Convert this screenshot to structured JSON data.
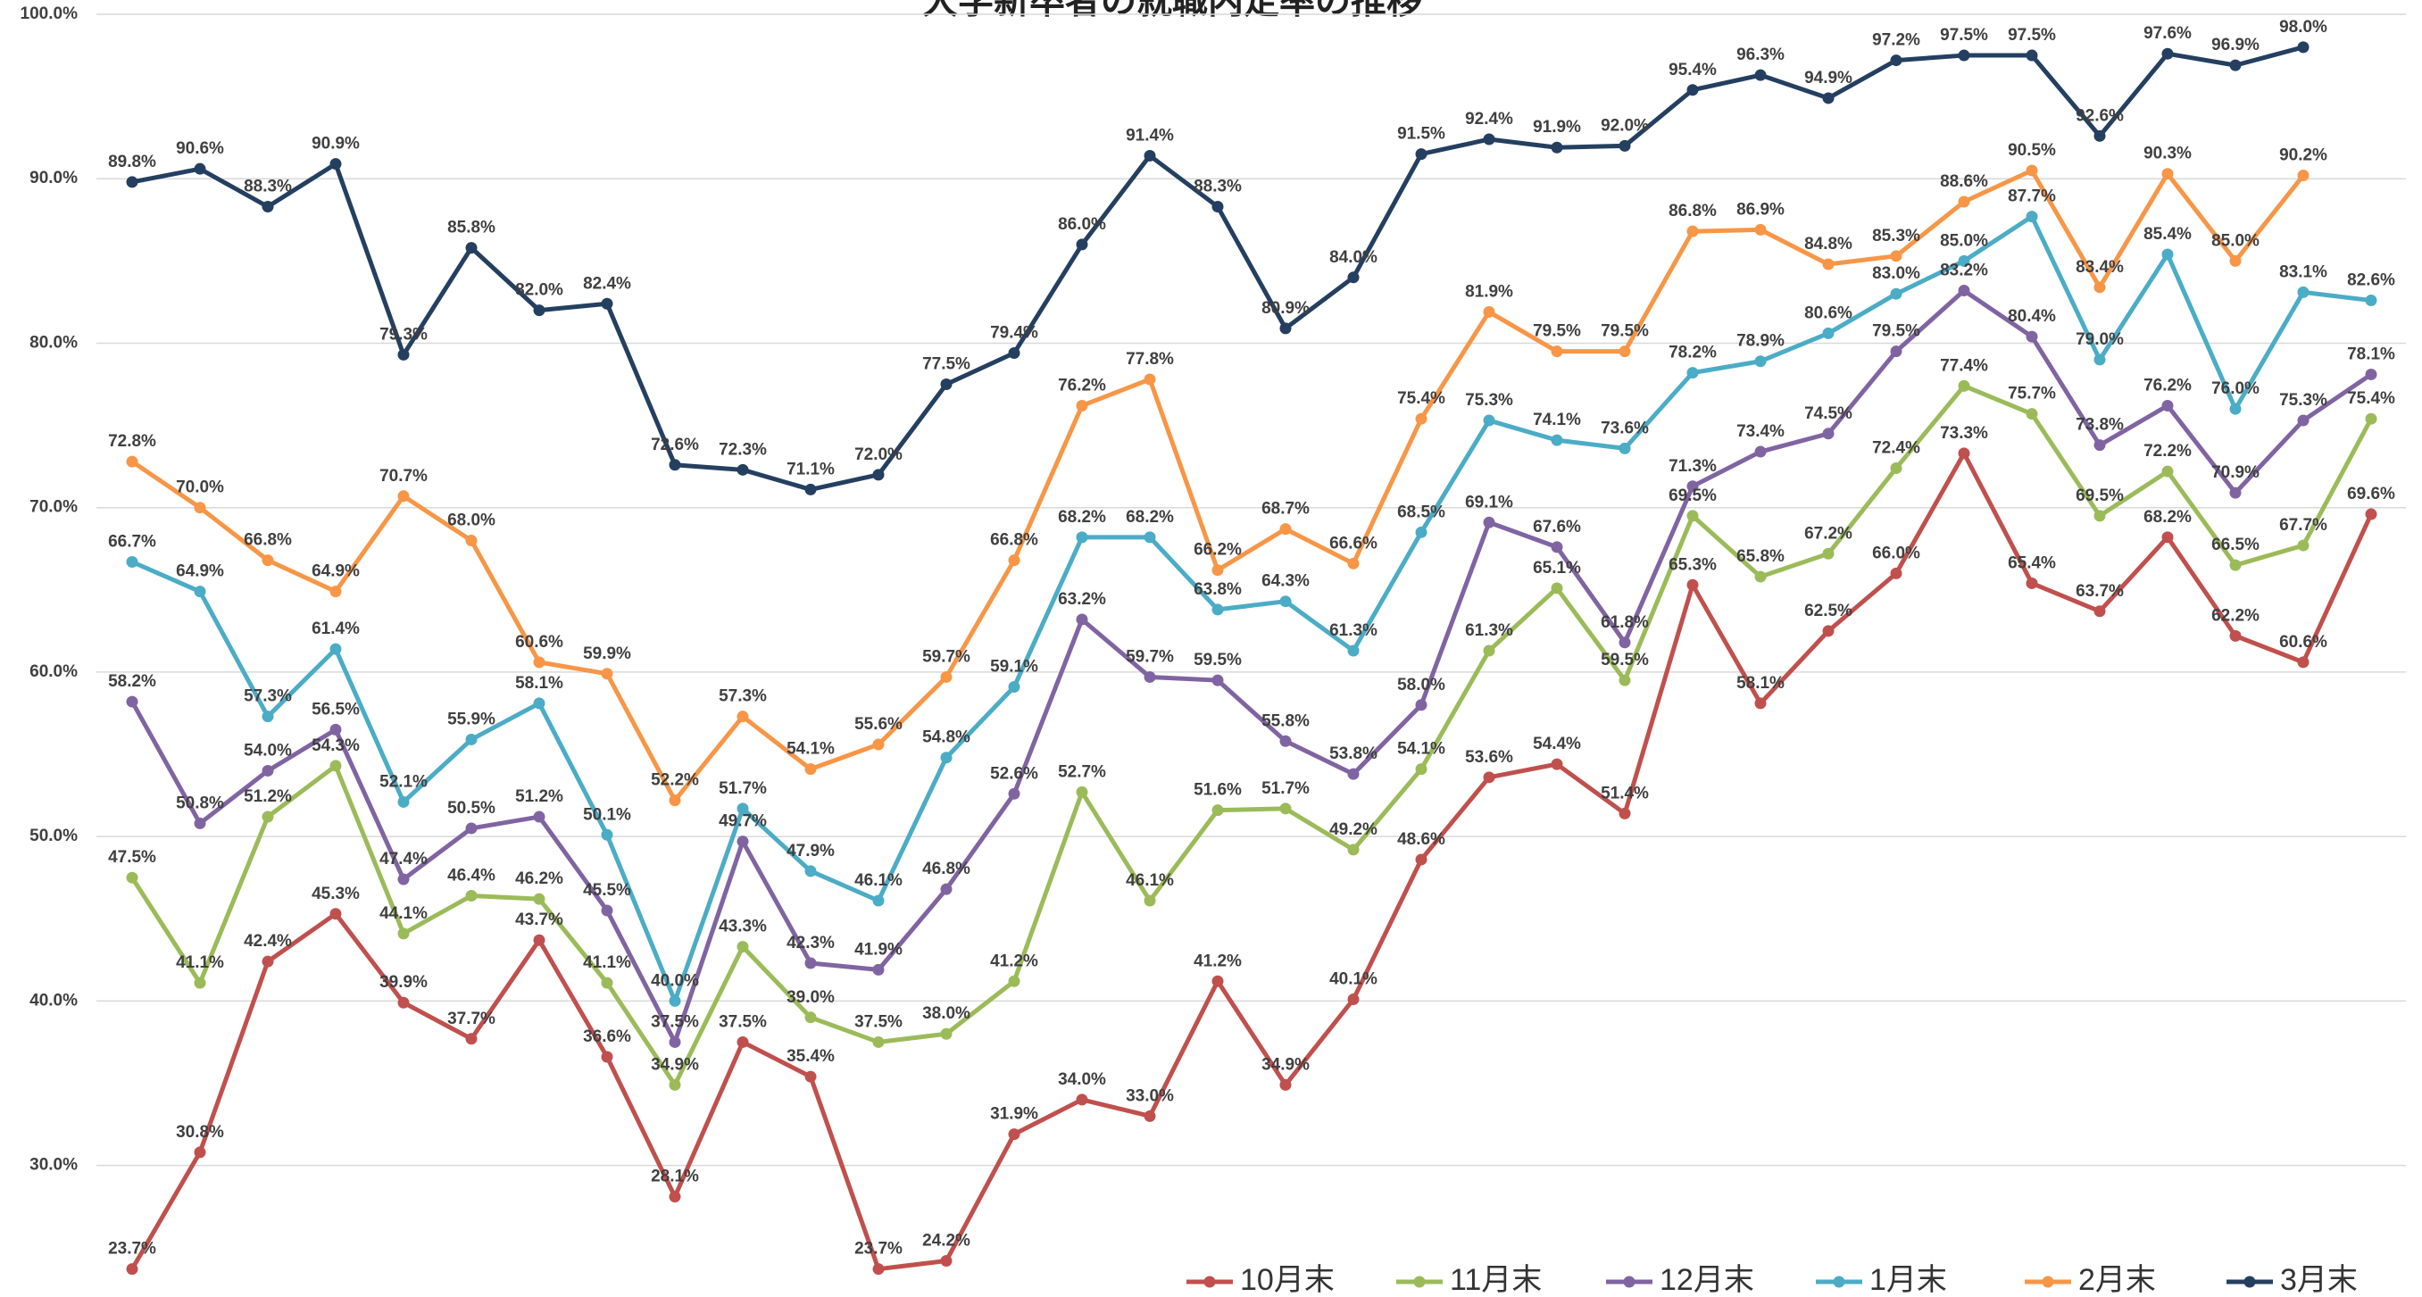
{
  "chart_data": {
    "type": "line",
    "title": "大学新卒者の就職内定率の推移",
    "categories": [
      null,
      null,
      null,
      null,
      null,
      null,
      null,
      null,
      null,
      null,
      null,
      null,
      null,
      null,
      null,
      null,
      null,
      null,
      null,
      null,
      null,
      null,
      null,
      null,
      null,
      null,
      null,
      null,
      null,
      null,
      null,
      null,
      null,
      null
    ],
    "ylim": [
      22,
      100
    ],
    "yticks": [
      {
        "value": 30,
        "label": "30.0%"
      },
      {
        "value": 40,
        "label": "40.0%"
      },
      {
        "value": 50,
        "label": "50.0%"
      },
      {
        "value": 60,
        "label": "60.0%"
      },
      {
        "value": 70,
        "label": "70.0%"
      },
      {
        "value": 80,
        "label": "80.0%"
      },
      {
        "value": 90,
        "label": "90.0%"
      },
      {
        "value": 100,
        "label": "100.0%"
      }
    ],
    "grid": true,
    "legend": "bottom",
    "series": [
      {
        "name": "10月末",
        "color": "#c0504d",
        "values": [
          23.7,
          30.8,
          42.4,
          45.3,
          39.9,
          37.7,
          43.7,
          36.6,
          28.1,
          37.5,
          35.4,
          23.7,
          24.2,
          31.9,
          34.0,
          33.0,
          41.2,
          34.9,
          40.1,
          48.6,
          53.6,
          54.4,
          51.4,
          65.3,
          58.1,
          62.5,
          66.0,
          73.3,
          65.4,
          63.7,
          68.2,
          62.2,
          60.6,
          69.6
        ],
        "value_labels": [
          "23.7%",
          "30.8%",
          "42.4%",
          "45.3%",
          "39.9%",
          "37.7%",
          "43.7%",
          "36.6%",
          "28.1%",
          "37.5%",
          "35.4%",
          "23.7%",
          "24.2%",
          "31.9%",
          "34.0%",
          "33.0%",
          "41.2%",
          "34.9%",
          "40.1%",
          "48.6%",
          "53.6%",
          "54.4%",
          "51.4%",
          "65.3%",
          "58.1%",
          "62.5%",
          "66.0%",
          "73.3%",
          "65.4%",
          "63.7%",
          "68.2%",
          "62.2%",
          "60.6%",
          "69.6%"
        ]
      },
      {
        "name": "11月末",
        "color": "#9bbb59",
        "values": [
          47.5,
          41.1,
          51.2,
          54.3,
          44.1,
          46.4,
          46.2,
          41.1,
          34.9,
          43.3,
          39.0,
          37.5,
          38.0,
          41.2,
          52.7,
          46.1,
          51.6,
          51.7,
          49.2,
          54.1,
          61.3,
          65.1,
          59.5,
          69.5,
          65.8,
          67.2,
          72.4,
          77.4,
          75.7,
          69.5,
          72.2,
          66.5,
          67.7,
          75.4
        ],
        "value_labels": [
          "47.5%",
          "41.1%",
          "51.2%",
          "54.3%",
          "44.1%",
          "46.4%",
          "46.2%",
          "41.1%",
          "34.9%",
          "43.3%",
          "39.0%",
          "37.5%",
          "38.0%",
          "41.2%",
          "52.7%",
          "46.1%",
          "51.6%",
          "51.7%",
          "49.2%",
          "54.1%",
          "61.3%",
          "65.1%",
          "59.5%",
          "69.5%",
          "65.8%",
          "67.2%",
          "72.4%",
          "77.4%",
          "75.7%",
          "69.5%",
          "72.2%",
          "66.5%",
          "67.7%",
          "75.4%"
        ]
      },
      {
        "name": "12月末",
        "color": "#8064a2",
        "values": [
          58.2,
          50.8,
          54.0,
          56.5,
          47.4,
          50.5,
          51.2,
          45.5,
          37.5,
          49.7,
          42.3,
          41.9,
          46.8,
          52.6,
          63.2,
          59.7,
          59.5,
          55.8,
          53.8,
          58.0,
          69.1,
          67.6,
          61.8,
          71.3,
          73.4,
          74.5,
          79.5,
          83.2,
          80.4,
          73.8,
          76.2,
          70.9,
          75.3,
          78.1
        ],
        "value_labels": [
          "58.2%",
          "50.8%",
          "54.0%",
          "56.5%",
          "47.4%",
          "50.5%",
          "51.2%",
          "45.5%",
          "37.5%",
          "49.7%",
          "42.3%",
          "41.9%",
          "46.8%",
          "52.6%",
          "63.2%",
          "59.7%",
          "59.5%",
          "55.8%",
          "53.8%",
          "58.0%",
          "69.1%",
          "67.6%",
          "61.8%",
          "71.3%",
          "73.4%",
          "74.5%",
          "79.5%",
          "83.2%",
          "80.4%",
          "73.8%",
          "76.2%",
          "70.9%",
          "75.3%",
          "78.1%"
        ]
      },
      {
        "name": "1月末",
        "color": "#4bacc6",
        "values": [
          66.7,
          64.9,
          57.3,
          61.4,
          52.1,
          55.9,
          58.1,
          50.1,
          40.0,
          51.7,
          47.9,
          46.1,
          54.8,
          59.1,
          68.2,
          68.2,
          63.8,
          64.3,
          61.3,
          68.5,
          75.3,
          74.1,
          73.6,
          78.2,
          78.9,
          80.6,
          83.0,
          85.0,
          87.7,
          79.0,
          85.4,
          76.0,
          83.1,
          82.6
        ],
        "value_labels": [
          "66.7%",
          "64.9%",
          "57.3%",
          "61.4%",
          "52.1%",
          "55.9%",
          "58.1%",
          "50.1%",
          "40.0%",
          "51.7%",
          "47.9%",
          "46.1%",
          "54.8%",
          "59.1%",
          "68.2%",
          "68.2%",
          "63.8%",
          "64.3%",
          "61.3%",
          "68.5%",
          "75.3%",
          "74.1%",
          "73.6%",
          "78.2%",
          "78.9%",
          "80.6%",
          "83.0%",
          "85.0%",
          "87.7%",
          "79.0%",
          "85.4%",
          "76.0%",
          "83.1%",
          "82.6%"
        ]
      },
      {
        "name": "2月末",
        "color": "#f79646",
        "values": [
          72.8,
          70.0,
          66.8,
          64.9,
          70.7,
          68.0,
          60.6,
          59.9,
          52.2,
          57.3,
          54.1,
          55.6,
          59.7,
          66.8,
          76.2,
          77.8,
          66.2,
          68.7,
          66.6,
          75.4,
          81.9,
          79.5,
          79.5,
          86.8,
          86.9,
          84.8,
          85.3,
          88.6,
          90.5,
          83.4,
          90.3,
          85.0,
          90.2,
          null
        ],
        "value_labels": [
          "72.8%",
          "70.0%",
          "66.8%",
          "64.9%",
          "70.7%",
          "68.0%",
          "60.6%",
          "59.9%",
          "52.2%",
          "57.3%",
          "54.1%",
          "55.6%",
          "59.7%",
          "66.8%",
          "76.2%",
          "77.8%",
          "66.2%",
          "68.7%",
          "66.6%",
          "75.4%",
          "81.9%",
          "79.5%",
          "79.5%",
          "86.8%",
          "86.9%",
          "84.8%",
          "85.3%",
          "88.6%",
          "90.5%",
          "83.4%",
          "90.3%",
          "85.0%",
          "90.2%",
          null
        ]
      },
      {
        "name": "3月末",
        "color": "#243f60",
        "values": [
          89.8,
          90.6,
          88.3,
          90.9,
          79.3,
          85.8,
          82.0,
          82.4,
          72.6,
          72.3,
          71.1,
          72.0,
          77.5,
          79.4,
          86.0,
          91.4,
          88.3,
          80.9,
          84.0,
          91.5,
          92.4,
          91.9,
          92.0,
          95.4,
          96.3,
          94.9,
          97.2,
          97.5,
          97.5,
          92.6,
          97.6,
          96.9,
          98.0,
          null
        ],
        "value_labels": [
          "89.8%",
          "90.6%",
          "88.3%",
          "90.9%",
          "79.3%",
          "85.8%",
          "82.0%",
          "82.4%",
          "72.6%",
          "72.3%",
          "71.1%",
          "72.0%",
          "77.5%",
          "79.4%",
          "86.0%",
          "91.4%",
          "88.3%",
          "80.9%",
          "84.0%",
          "91.5%",
          "92.4%",
          "91.9%",
          "92.0%",
          "95.4%",
          "96.3%",
          "94.9%",
          "97.2%",
          "97.5%",
          "97.5%",
          "92.6%",
          "97.6%",
          "96.9%",
          "98.0%",
          null
        ]
      }
    ]
  }
}
